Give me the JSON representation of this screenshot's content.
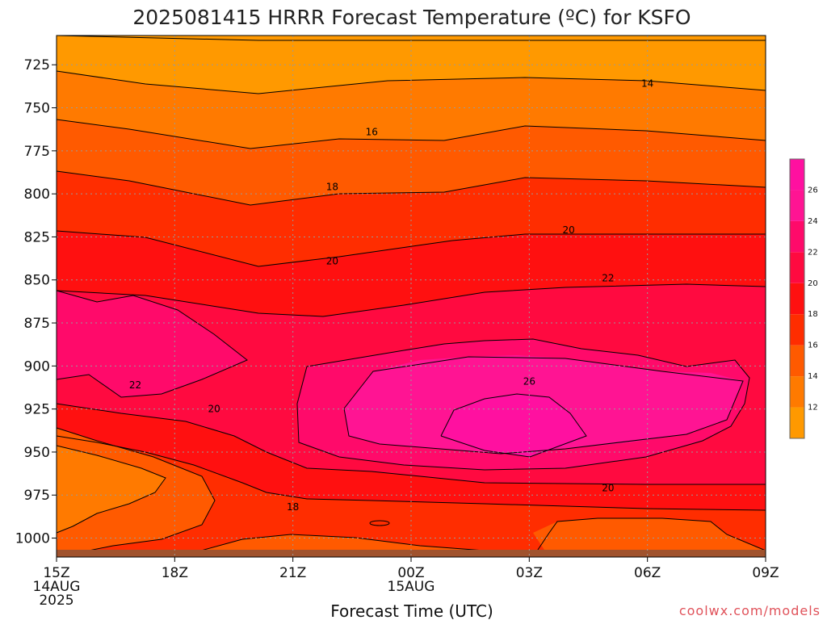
{
  "title": "2025081415 HRRR Forecast Temperature (ºC) for KSFO",
  "credit": "coolwx.com/models",
  "colors": {
    "c12": "#ff9900",
    "c14": "#ff7a00",
    "c16": "#ff5a00",
    "c18": "#ff2d00",
    "c20": "#ff1010",
    "c22": "#ff0a40",
    "c24": "#ff0a6a",
    "c26": "#ff1493",
    "c28": "#ff10a0",
    "ground": "#a0522d",
    "grid": "#9a9a9a"
  },
  "chart_data": {
    "type": "heatmap",
    "title": "2025081415 HRRR Forecast Temperature (ºC) for KSFO",
    "xlabel": "Forecast Time (UTC)",
    "ylabel": "",
    "x_ticks": [
      {
        "label": "15Z",
        "sub1": "14AUG",
        "sub2": "2025"
      },
      {
        "label": "18Z",
        "sub1": "",
        "sub2": ""
      },
      {
        "label": "21Z",
        "sub1": "",
        "sub2": ""
      },
      {
        "label": "00Z",
        "sub1": "15AUG",
        "sub2": ""
      },
      {
        "label": "03Z",
        "sub1": "",
        "sub2": ""
      },
      {
        "label": "06Z",
        "sub1": "",
        "sub2": ""
      },
      {
        "label": "09Z",
        "sub1": "",
        "sub2": ""
      }
    ],
    "x_hours": [
      0,
      3,
      6,
      9,
      12,
      15,
      18
    ],
    "y_ticks": [
      "725",
      "750",
      "775",
      "800",
      "825",
      "850",
      "875",
      "900",
      "925",
      "950",
      "975",
      "1000"
    ],
    "y_values": [
      725,
      750,
      775,
      800,
      825,
      850,
      875,
      900,
      925,
      950,
      975,
      1000
    ],
    "ylim": [
      1011,
      708
    ],
    "xlim": [
      0,
      18
    ],
    "grid": true,
    "colorbar": {
      "ticks": [
        "26",
        "24",
        "22",
        "20",
        "18",
        "16",
        "14",
        "12"
      ],
      "levels": [
        12,
        14,
        16,
        18,
        20,
        22,
        24,
        26,
        28
      ],
      "colors": [
        "#ff9900",
        "#ff7a00",
        "#ff5a00",
        "#ff2d00",
        "#ff1010",
        "#ff0a40",
        "#ff0a6a",
        "#ff1493",
        "#ff10a0"
      ]
    },
    "contour_labels": [
      {
        "text": "14",
        "x": 15.0,
        "y": 736
      },
      {
        "text": "16",
        "x": 8.0,
        "y": 764
      },
      {
        "text": "18",
        "x": 7.0,
        "y": 796
      },
      {
        "text": "20",
        "x": 13.0,
        "y": 821
      },
      {
        "text": "20",
        "x": 7.0,
        "y": 839
      },
      {
        "text": "22",
        "x": 14.0,
        "y": 849
      },
      {
        "text": "22",
        "x": 2.0,
        "y": 911
      },
      {
        "text": "26",
        "x": 12.0,
        "y": 909
      },
      {
        "text": "20",
        "x": 4.0,
        "y": 925
      },
      {
        "text": "20",
        "x": 14.0,
        "y": 971
      },
      {
        "text": "18",
        "x": 6.0,
        "y": 982
      }
    ]
  }
}
